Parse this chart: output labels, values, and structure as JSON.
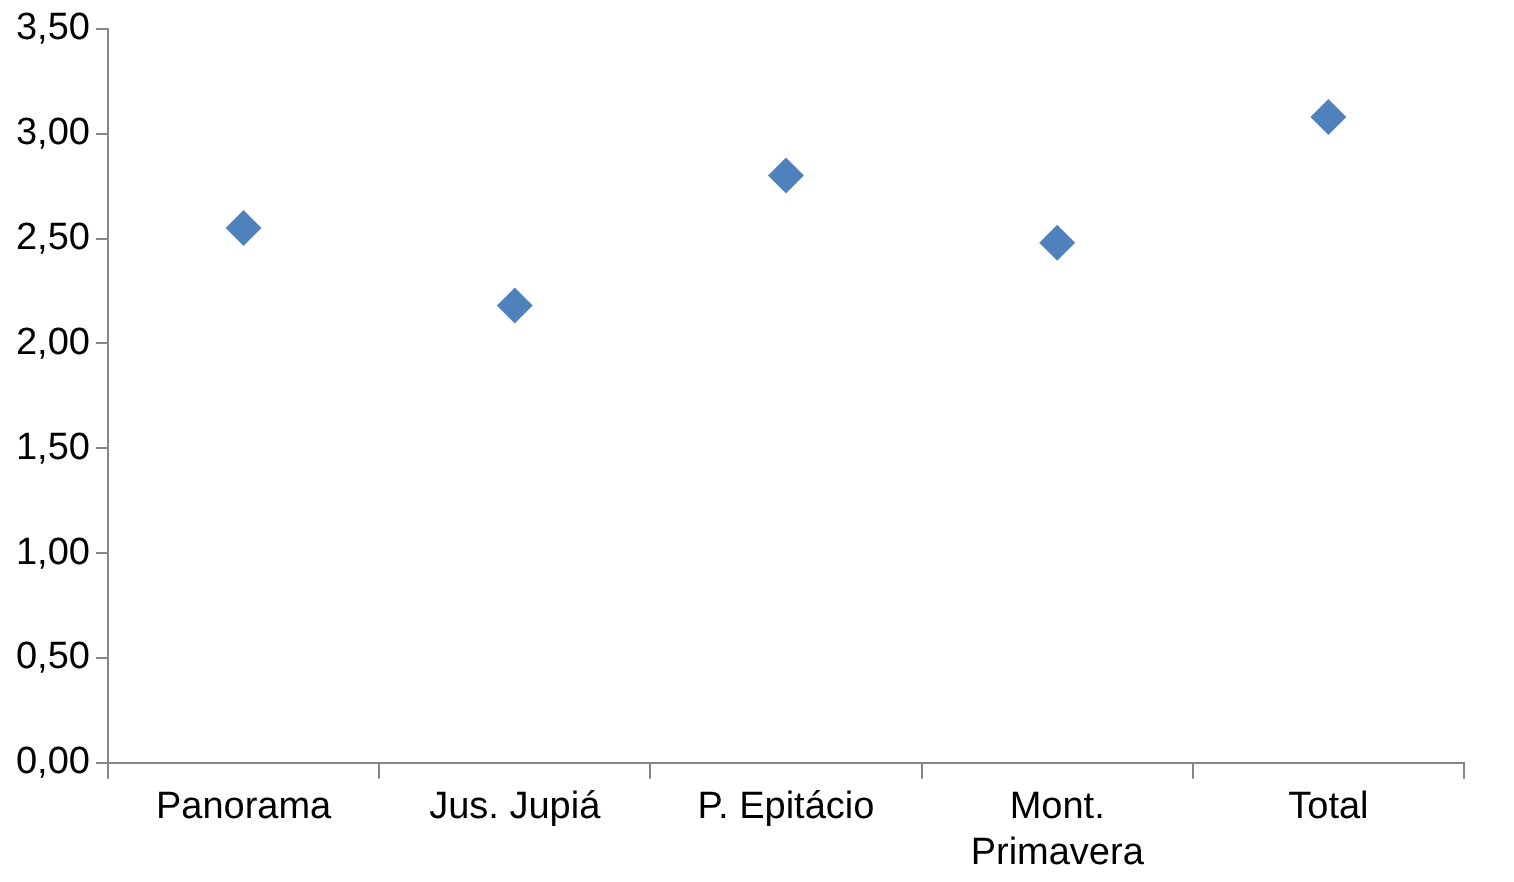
{
  "chart_data": {
    "type": "scatter",
    "categories": [
      "Panorama",
      "Jus. Jupiá",
      "P. Epitácio",
      "Mont. Primavera",
      "Total"
    ],
    "values": [
      2.55,
      2.18,
      2.8,
      2.48,
      3.08
    ],
    "color": "#4f81bd",
    "marker": "diamond",
    "ylim": [
      0,
      3.5
    ],
    "yticks": [
      {
        "value": 0,
        "label": "0,00"
      },
      {
        "value": 0.5,
        "label": "0,50"
      },
      {
        "value": 1,
        "label": "1,00"
      },
      {
        "value": 1.5,
        "label": "1,50"
      },
      {
        "value": 2,
        "label": "2,00"
      },
      {
        "value": 2.5,
        "label": "2,50"
      },
      {
        "value": 3,
        "label": "3,00"
      },
      {
        "value": 3.5,
        "label": "3,50"
      }
    ],
    "grid": false,
    "legend": false
  }
}
